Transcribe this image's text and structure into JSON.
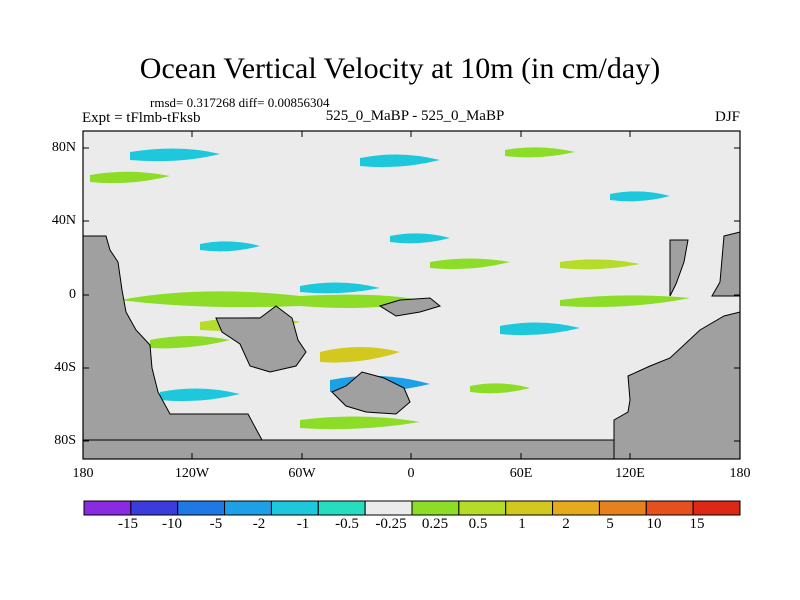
{
  "title": "Ocean Vertical Velocity at 10m (in cm/day)",
  "stats": "rmsd= 0.317268 diff= 0.00856304",
  "experiment": "Expt = tFlmb-tFksb",
  "center_label": "525_0_MaBP - 525_0_MaBP",
  "season": "DJF",
  "lat_ticks": [
    "80N",
    "40N",
    "0",
    "40S",
    "80S"
  ],
  "lon_ticks": [
    "180",
    "120W",
    "60W",
    "0",
    "60E",
    "120E",
    "180"
  ],
  "colorbar": {
    "labels": [
      "-15",
      "-10",
      "-5",
      "-2",
      "-1",
      "-0.5",
      "-0.25",
      "0.25",
      "0.5",
      "1",
      "2",
      "5",
      "10",
      "15"
    ],
    "colors": [
      "#8a2be2",
      "#3c3cdc",
      "#1e78e6",
      "#1ea0e6",
      "#1ec8dc",
      "#28dcc0",
      "#ebebeb",
      "#8cdc28",
      "#b4dc28",
      "#d2c81e",
      "#e6aa1e",
      "#e6821e",
      "#e6501e",
      "#dc2814"
    ]
  },
  "map_colors": {
    "ocean": "#ebebeb",
    "land": "#a0a0a0"
  }
}
